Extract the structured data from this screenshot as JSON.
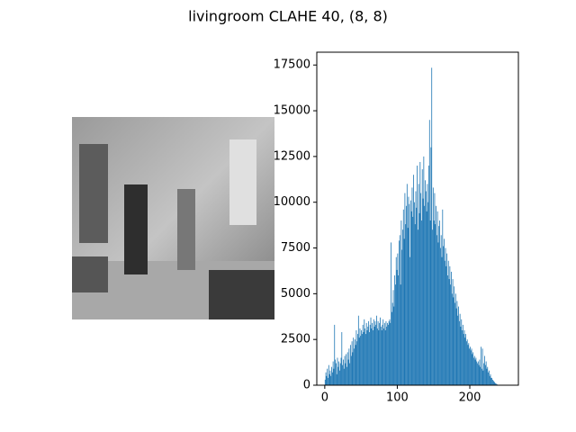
{
  "chart_data": {
    "type": "histogram",
    "title": "livingroom CLAHE 40, (8, 8)",
    "color": "#1f77b4",
    "xlim": [
      -11,
      267
    ],
    "ylim": [
      0,
      18200
    ],
    "xticks": [
      0,
      100,
      200
    ],
    "yticks": [
      0,
      2500,
      5000,
      7500,
      10000,
      12500,
      15000,
      17500
    ],
    "bins": [
      0,
      1,
      2,
      3,
      4,
      5,
      6,
      7,
      8,
      9,
      10,
      11,
      12,
      13,
      14,
      15,
      16,
      17,
      18,
      19,
      20,
      21,
      22,
      23,
      24,
      25,
      26,
      27,
      28,
      29,
      30,
      31,
      32,
      33,
      34,
      35,
      36,
      37,
      38,
      39,
      40,
      41,
      42,
      43,
      44,
      45,
      46,
      47,
      48,
      49,
      50,
      51,
      52,
      53,
      54,
      55,
      56,
      57,
      58,
      59,
      60,
      61,
      62,
      63,
      64,
      65,
      66,
      67,
      68,
      69,
      70,
      71,
      72,
      73,
      74,
      75,
      76,
      77,
      78,
      79,
      80,
      81,
      82,
      83,
      84,
      85,
      86,
      87,
      88,
      89,
      90,
      91,
      92,
      93,
      94,
      95,
      96,
      97,
      98,
      99,
      100,
      101,
      102,
      103,
      104,
      105,
      106,
      107,
      108,
      109,
      110,
      111,
      112,
      113,
      114,
      115,
      116,
      117,
      118,
      119,
      120,
      121,
      122,
      123,
      124,
      125,
      126,
      127,
      128,
      129,
      130,
      131,
      132,
      133,
      134,
      135,
      136,
      137,
      138,
      139,
      140,
      141,
      142,
      143,
      144,
      145,
      146,
      147,
      148,
      149,
      150,
      151,
      152,
      153,
      154,
      155,
      156,
      157,
      158,
      159,
      160,
      161,
      162,
      163,
      164,
      165,
      166,
      167,
      168,
      169,
      170,
      171,
      172,
      173,
      174,
      175,
      176,
      177,
      178,
      179,
      180,
      181,
      182,
      183,
      184,
      185,
      186,
      187,
      188,
      189,
      190,
      191,
      192,
      193,
      194,
      195,
      196,
      197,
      198,
      199,
      200,
      201,
      202,
      203,
      204,
      205,
      206,
      207,
      208,
      209,
      210,
      211,
      212,
      213,
      214,
      215,
      216,
      217,
      218,
      219,
      220,
      221,
      222,
      223,
      224,
      225,
      226,
      227,
      228,
      229,
      230,
      231,
      232,
      233,
      234,
      235,
      236,
      237,
      238,
      239,
      240,
      241,
      242,
      243,
      244,
      245,
      246,
      247,
      248,
      249,
      250,
      251,
      252,
      253,
      254,
      255,
      256
    ],
    "counts": [
      300,
      700,
      500,
      900,
      400,
      1100,
      600,
      800,
      500,
      1000,
      700,
      1300,
      900,
      3300,
      1400,
      1200,
      600,
      1500,
      1000,
      1300,
      800,
      1200,
      1500,
      2900,
      1100,
      1400,
      900,
      1600,
      1200,
      1700,
      1000,
      1800,
      1400,
      2000,
      1200,
      2200,
      1600,
      2400,
      1800,
      2600,
      2000,
      2500,
      2200,
      3000,
      2400,
      2800,
      3800,
      2600,
      3100,
      2700,
      3000,
      2800,
      3300,
      2900,
      3600,
      3100,
      2800,
      3400,
      3000,
      3200,
      3500,
      2900,
      3300,
      3700,
      3100,
      3400,
      3000,
      3600,
      3200,
      3500,
      3300,
      3800,
      3100,
      3500,
      3000,
      3400,
      3700,
      3200,
      3000,
      3300,
      3600,
      3100,
      3400,
      3000,
      3500,
      3200,
      3400,
      3300,
      3500,
      3600,
      3400,
      7800,
      4000,
      4500,
      5200,
      4300,
      6000,
      5500,
      7000,
      6300,
      7200,
      6000,
      7900,
      8200,
      5500,
      9000,
      7400,
      8500,
      9600,
      8000,
      10500,
      8800,
      9800,
      11000,
      8600,
      10300,
      9900,
      7000,
      10100,
      9500,
      10800,
      9200,
      11500,
      10000,
      8800,
      10600,
      9700,
      12000,
      8500,
      11000,
      9400,
      12200,
      10500,
      9000,
      11800,
      10200,
      12500,
      9800,
      11200,
      10600,
      9500,
      11000,
      10000,
      12000,
      14500,
      9000,
      13000,
      17350,
      8500,
      10800,
      9000,
      10500,
      8800,
      9800,
      8200,
      9500,
      7800,
      8700,
      9000,
      7500,
      8200,
      7000,
      9600,
      7600,
      8000,
      6800,
      7500,
      6500,
      7200,
      6000,
      6800,
      5800,
      6500,
      5500,
      6200,
      5000,
      5800,
      4800,
      5400,
      4500,
      5000,
      4200,
      4600,
      3800,
      4300,
      3500,
      3900,
      3200,
      3600,
      3000,
      3300,
      2800,
      3000,
      2600,
      2800,
      2400,
      2500,
      2200,
      2300,
      2000,
      2100,
      1900,
      2000,
      1700,
      1800,
      1500,
      1600,
      1400,
      1500,
      1300,
      1200,
      1300,
      1100,
      1400,
      1000,
      2100,
      900,
      2000,
      800,
      1200,
      1600,
      1100,
      1300,
      900,
      1000,
      700,
      800,
      500,
      600,
      400,
      400,
      300,
      250,
      200,
      150,
      100,
      80,
      50,
      20,
      10,
      0,
      0,
      0,
      0,
      0,
      0,
      0,
      0,
      0,
      0,
      0,
      0,
      0,
      0,
      0,
      0
    ]
  }
}
